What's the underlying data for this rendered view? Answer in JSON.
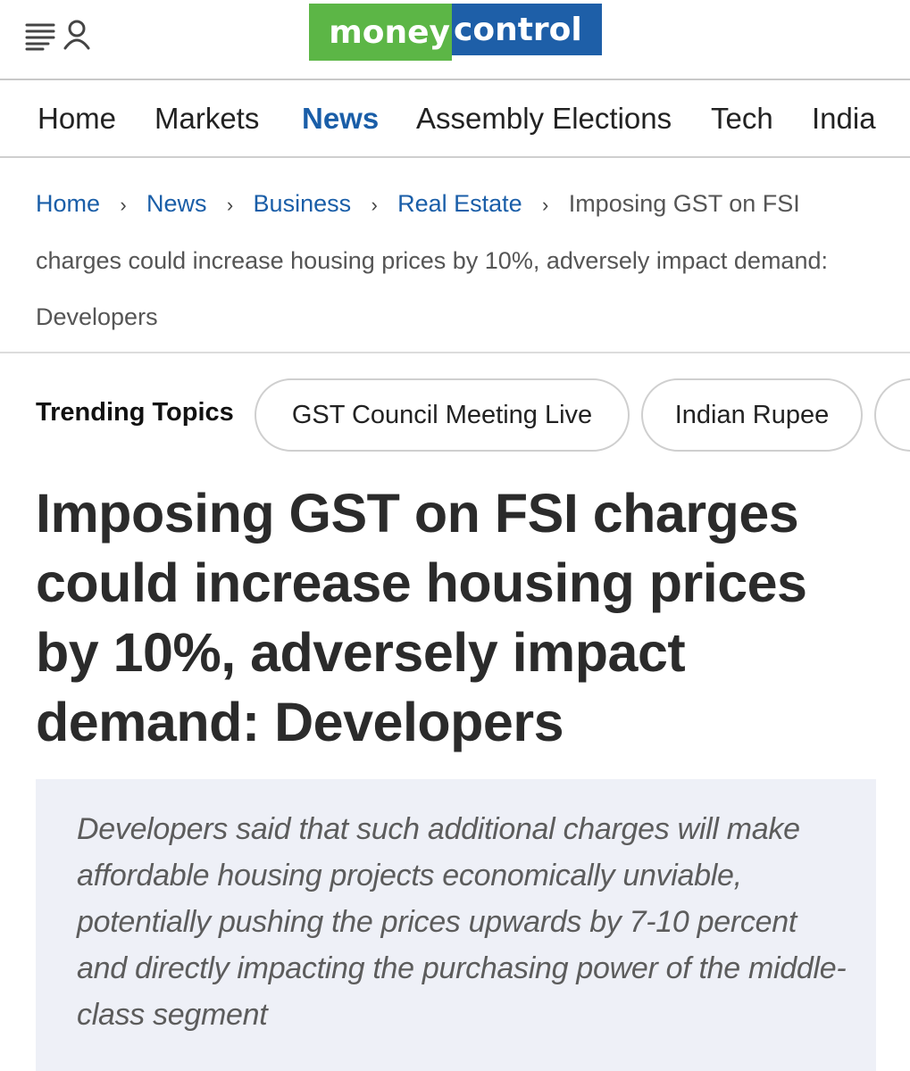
{
  "header": {
    "icons": [
      "menu-icon",
      "user-icon"
    ],
    "logo": {
      "part1": "money",
      "part2": "control",
      "color1": "#5cb646",
      "color2": "#1e5fa8"
    }
  },
  "nav": {
    "items": [
      {
        "label": "Home",
        "active": false
      },
      {
        "label": "Markets",
        "active": false
      },
      {
        "label": "News",
        "active": true
      },
      {
        "label": "Assembly Elections",
        "active": false
      },
      {
        "label": "Tech",
        "active": false
      },
      {
        "label": "India",
        "active": false
      }
    ],
    "active_color": "#1a5ea8"
  },
  "breadcrumb": {
    "links": [
      "Home",
      "News",
      "Business",
      "Real Estate"
    ],
    "separator": "›",
    "current": "Imposing GST on FSI charges could increase housing prices by 10%, adversely impact demand: Developers"
  },
  "trending": {
    "label": "Trending Topics",
    "topics": [
      "GST Council Meeting Live",
      "Indian Rupee",
      ""
    ]
  },
  "article": {
    "headline": "Imposing GST on FSI charges could increase housing prices by 10%, adversely impact demand: Developers",
    "summary": "Developers said that such additional charges will make affordable housing projects economically unviable, potentially pushing the prices upwards by 7-10 percent and directly impacting the purchasing power of the middle-class segment"
  }
}
